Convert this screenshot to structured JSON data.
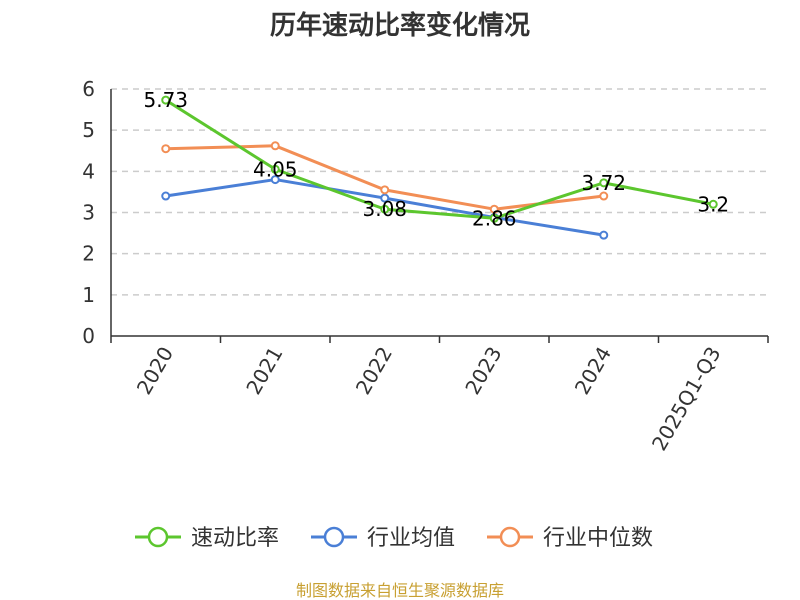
{
  "chart_data": {
    "type": "line",
    "title": "历年速动比率变化情况",
    "categories": [
      "2020",
      "2021",
      "2022",
      "2023",
      "2024",
      "2025Q1-Q3"
    ],
    "ylim": [
      0,
      6
    ],
    "yticks": [
      "0",
      "1",
      "2",
      "3",
      "4",
      "5",
      "6"
    ],
    "grid": "horizontal-dashed",
    "legend_position": "bottom",
    "series": [
      {
        "name": "速动比率",
        "color": "#5cc62e",
        "values": [
          5.73,
          4.05,
          3.08,
          2.86,
          3.72,
          3.2
        ],
        "labels": [
          "5.73",
          "4.05",
          "3.08",
          "2.86",
          "3.72",
          "3.2"
        ]
      },
      {
        "name": "行业均值",
        "color": "#4a7fd6",
        "values": [
          3.4,
          3.8,
          3.35,
          2.88,
          2.45,
          null
        ]
      },
      {
        "name": "行业中位数",
        "color": "#f28e55",
        "values": [
          4.55,
          4.62,
          3.55,
          3.08,
          3.4,
          null
        ]
      }
    ],
    "source": "制图数据来自恒生聚源数据库"
  }
}
